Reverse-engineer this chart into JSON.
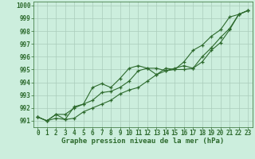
{
  "title": "Graphe pression niveau de la mer (hPa)",
  "xlabel_hours": [
    0,
    1,
    2,
    3,
    4,
    5,
    6,
    7,
    8,
    9,
    10,
    11,
    12,
    13,
    14,
    15,
    16,
    17,
    18,
    19,
    20,
    21,
    22,
    23
  ],
  "line1": [
    991.3,
    991.0,
    991.2,
    991.1,
    991.2,
    991.7,
    992.0,
    992.3,
    992.6,
    993.1,
    993.4,
    993.6,
    994.1,
    994.6,
    994.9,
    995.0,
    995.0,
    995.1,
    996.0,
    996.7,
    997.5,
    998.2,
    999.3,
    999.6
  ],
  "line2": [
    991.3,
    991.0,
    991.5,
    991.5,
    992.0,
    992.3,
    992.6,
    993.2,
    993.3,
    993.6,
    994.1,
    994.9,
    995.1,
    995.1,
    994.9,
    995.1,
    995.3,
    995.1,
    995.6,
    996.5,
    997.1,
    998.1,
    999.3,
    999.6
  ],
  "line3": [
    991.3,
    991.0,
    991.5,
    991.1,
    992.1,
    992.3,
    993.6,
    993.9,
    993.6,
    994.3,
    995.1,
    995.3,
    995.1,
    994.6,
    995.1,
    995.0,
    995.6,
    996.5,
    996.9,
    997.6,
    998.1,
    999.1,
    999.3,
    999.6
  ],
  "line_color": "#2d6a2d",
  "bg_color": "#cceedd",
  "grid_color": "#aaccbb",
  "ylim": [
    990.5,
    1000.3
  ],
  "yticks": [
    991,
    992,
    993,
    994,
    995,
    996,
    997,
    998,
    999,
    1000
  ],
  "marker": "+",
  "marker_size": 3,
  "linewidth": 0.8,
  "tick_fontsize": 5.5,
  "xlabel_fontsize": 6.5
}
